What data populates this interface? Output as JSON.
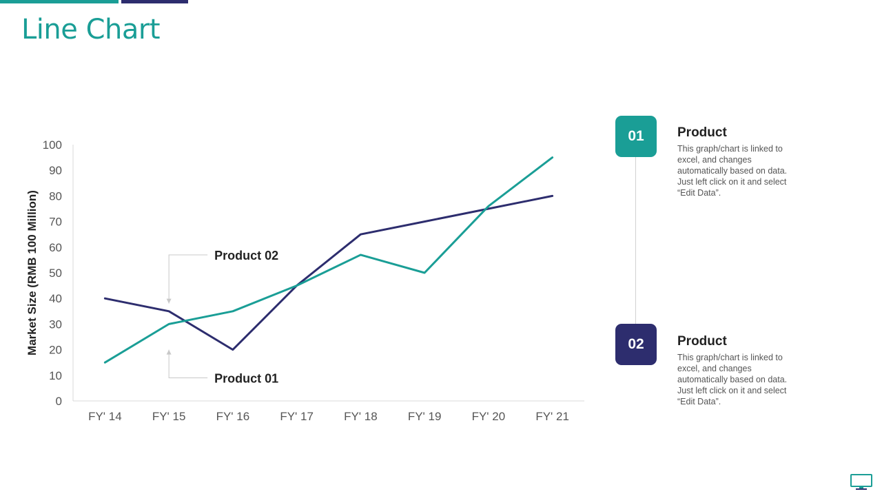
{
  "page": {
    "title": "Line Chart"
  },
  "chart_data": {
    "type": "line",
    "categories": [
      "FY' 14",
      "FY' 15",
      "FY' 16",
      "FY' 17",
      "FY' 18",
      "FY' 19",
      "FY' 20",
      "FY' 21"
    ],
    "series": [
      {
        "name": "Product 01",
        "color": "#1a9e96",
        "values": [
          15,
          30,
          35,
          45,
          57,
          50,
          76,
          95
        ]
      },
      {
        "name": "Product 02",
        "color": "#2d2d6e",
        "values": [
          40,
          35,
          20,
          45,
          65,
          70,
          75,
          80
        ]
      }
    ],
    "ylabel": "Market Size (RMB 100 Million)",
    "xlabel": "",
    "ylim": [
      0,
      100
    ],
    "yticks": [
      0,
      10,
      20,
      30,
      40,
      50,
      60,
      70,
      80,
      90,
      100
    ],
    "annotations": [
      {
        "text": "Product 02",
        "target_category": "FY' 15",
        "target_value": 38,
        "anchor_value": 57
      },
      {
        "text": "Product 01",
        "target_category": "FY' 15",
        "target_value": 20,
        "anchor_value": 9
      }
    ]
  },
  "legend": [
    {
      "number": "01",
      "title": "Product",
      "description": "This graph/chart is linked to excel, and changes automatically based on data. Just left click on it and select “Edit Data”.",
      "color": "#1a9e96"
    },
    {
      "number": "02",
      "title": "Product",
      "description": "This graph/chart is linked to excel, and changes automatically based on data. Just left click on it and select “Edit Data”.",
      "color": "#2d2d6e"
    }
  ],
  "footer": {
    "icon": "monitor-icon"
  }
}
